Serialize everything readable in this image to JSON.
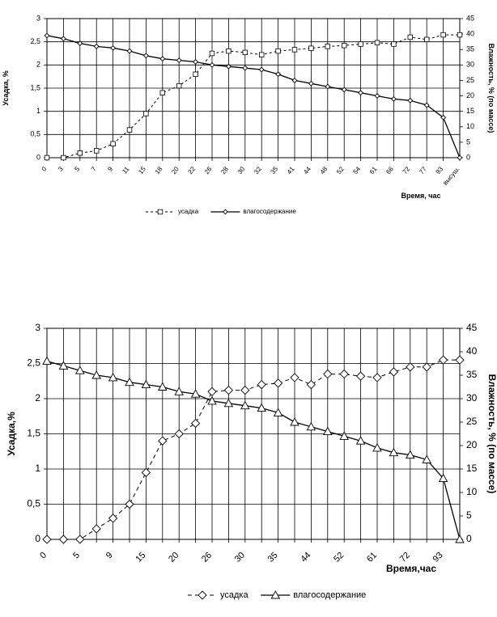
{
  "chart_data": [
    {
      "type": "line",
      "ylabel": "Усадка, %",
      "y2label": "Влажность, % (по массе)",
      "xlabel": "Время, час",
      "ylim": [
        0,
        3
      ],
      "y2lim": [
        0,
        45
      ],
      "y_ticks": [
        "0",
        "0,5",
        "1",
        "1,5",
        "2",
        "2,5",
        "3"
      ],
      "y2_ticks": [
        "0",
        "5",
        "10",
        "15",
        "20",
        "25",
        "30",
        "35",
        "40",
        "45"
      ],
      "categories": [
        "0",
        "3",
        "5",
        "7",
        "9",
        "11",
        "15",
        "18",
        "20",
        "22",
        "26",
        "28",
        "30",
        "32",
        "35",
        "41",
        "44",
        "48",
        "52",
        "54",
        "61",
        "66",
        "72",
        "77",
        "93",
        "высуш."
      ],
      "grid": true,
      "legend_position": "bottom",
      "series": [
        {
          "name": "усадка",
          "axis": "left",
          "marker": "square",
          "dash": true,
          "values": [
            0,
            0,
            0.1,
            0.15,
            0.3,
            0.6,
            0.95,
            1.4,
            1.55,
            1.8,
            2.25,
            2.3,
            2.27,
            2.22,
            2.3,
            2.33,
            2.36,
            2.4,
            2.42,
            2.45,
            2.48,
            2.45,
            2.6,
            2.55,
            2.65,
            2.65
          ]
        },
        {
          "name": "влагосодержание",
          "axis": "right",
          "marker": "diamond",
          "dash": false,
          "values": [
            39.5,
            38.5,
            37,
            36,
            35.5,
            34.5,
            33,
            32,
            31.5,
            31,
            30,
            29.5,
            29,
            28.5,
            27,
            25,
            24,
            23,
            22,
            21,
            20,
            19,
            18.5,
            17,
            13,
            0
          ]
        }
      ]
    },
    {
      "type": "line",
      "ylabel": "Усадка,%",
      "y2label": "Влажность, % (по массе)",
      "xlabel": "Время,час",
      "ylim": [
        0,
        3
      ],
      "y2lim": [
        0,
        45
      ],
      "y_ticks": [
        "0",
        "0,5",
        "1",
        "1,5",
        "2",
        "2,5",
        "3"
      ],
      "y2_ticks": [
        "0",
        "5",
        "10",
        "15",
        "20",
        "25",
        "30",
        "35",
        "40",
        "45"
      ],
      "tick_labels": [
        "0",
        "5",
        "9",
        "15",
        "20",
        "26",
        "30",
        "35",
        "44",
        "52",
        "61",
        "72",
        "93"
      ],
      "grid": true,
      "legend_position": "bottom",
      "series": [
        {
          "name": "усадка",
          "axis": "left",
          "marker": "diamond",
          "dash": true,
          "values": [
            0,
            0,
            0,
            0.15,
            0.3,
            0.5,
            0.95,
            1.4,
            1.5,
            1.65,
            2.1,
            2.12,
            2.12,
            2.2,
            2.22,
            2.3,
            2.2,
            2.35,
            2.35,
            2.32,
            2.3,
            2.38,
            2.45,
            2.45,
            2.55,
            2.55
          ]
        },
        {
          "name": "влагосодержание",
          "axis": "right",
          "marker": "triangle",
          "dash": false,
          "values": [
            38,
            37,
            36,
            35,
            34.5,
            33.5,
            33,
            32.5,
            31.5,
            31,
            29.5,
            29,
            28.5,
            28,
            27,
            25,
            24,
            23,
            22,
            21,
            19.5,
            18.5,
            18,
            17,
            13,
            0
          ]
        }
      ]
    }
  ]
}
